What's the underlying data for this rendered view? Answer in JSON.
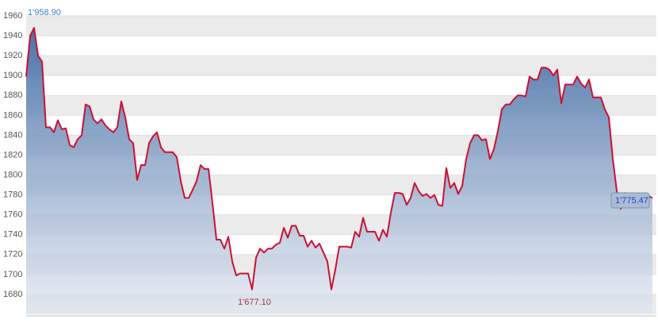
{
  "chart_data": {
    "type": "area",
    "values": [
      1899,
      1940,
      1948,
      1920,
      1914,
      1848,
      1848,
      1843,
      1855,
      1846,
      1847,
      1830,
      1828,
      1836,
      1840,
      1871,
      1869,
      1856,
      1852,
      1856,
      1850,
      1846,
      1843,
      1848,
      1874,
      1858,
      1836,
      1832,
      1795,
      1810,
      1810,
      1832,
      1839,
      1843,
      1828,
      1823,
      1823,
      1823,
      1818,
      1794,
      1777,
      1777,
      1785,
      1794,
      1810,
      1806,
      1806,
      1772,
      1735,
      1735,
      1726,
      1738,
      1713,
      1699,
      1701,
      1701,
      1701,
      1685,
      1717,
      1726,
      1722,
      1726,
      1726,
      1730,
      1732,
      1747,
      1737,
      1749,
      1749,
      1739,
      1739,
      1728,
      1734,
      1727,
      1731,
      1722,
      1713,
      1685,
      1705,
      1728,
      1728,
      1728,
      1727,
      1743,
      1738,
      1757,
      1743,
      1743,
      1743,
      1734,
      1745,
      1738,
      1762,
      1782,
      1782,
      1781,
      1770,
      1777,
      1792,
      1784,
      1779,
      1781,
      1777,
      1780,
      1770,
      1769,
      1807,
      1787,
      1792,
      1781,
      1789,
      1816,
      1832,
      1840,
      1840,
      1835,
      1836,
      1816,
      1826,
      1844,
      1866,
      1871,
      1871,
      1876,
      1880,
      1880,
      1879,
      1899,
      1896,
      1896,
      1908,
      1908,
      1906,
      1900,
      1906,
      1872,
      1891,
      1891,
      1891,
      1899,
      1892,
      1888,
      1896,
      1878,
      1878,
      1878,
      1866,
      1858,
      1816,
      1784,
      1766,
      1782,
      1778,
      1779,
      1775,
      1781,
      1775,
      1779,
      1777
    ],
    "line_color": "#cc1133",
    "ylim": [
      1660,
      1972
    ],
    "yticks": [
      1680,
      1700,
      1720,
      1740,
      1760,
      1780,
      1800,
      1820,
      1840,
      1860,
      1880,
      1900,
      1920,
      1940,
      1960
    ],
    "grid": true,
    "max_label": "1'958.90",
    "min_label": "1'677.10",
    "last_label": "1'775.47"
  }
}
